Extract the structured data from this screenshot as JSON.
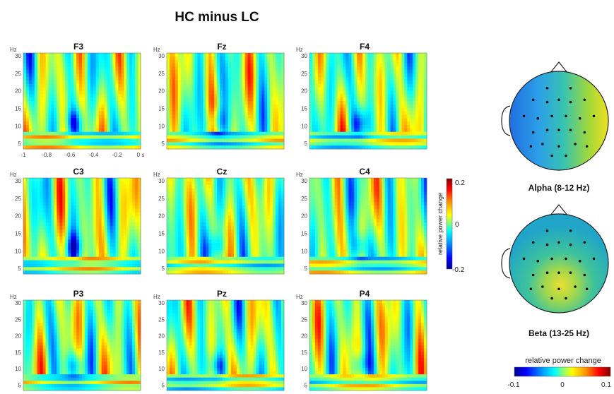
{
  "figure": {
    "title": "HC minus LC",
    "freq_unit": "Hz",
    "y_ticks": [
      "30",
      "25",
      "20",
      "15",
      "10",
      "5"
    ],
    "x_ticks": [
      "-1",
      "-0.8",
      "-0.6",
      "-0.4",
      "-0.2",
      "0 s"
    ],
    "colorbar": {
      "label": "relative power change",
      "ticks": [
        "0.2",
        "0",
        "-0.2"
      ]
    },
    "topo_alpha_label": "Alpha (8-12 Hz)",
    "topo_beta_label": "Beta (13-25 Hz)",
    "topo_colorbar": {
      "label": "relative power change",
      "ticks": [
        "-0.1",
        "0",
        "0.1"
      ]
    },
    "colors": {
      "colormap": [
        "#00008f",
        "#0000ff",
        "#00a0ff",
        "#00ffff",
        "#7fff7f",
        "#ffff00",
        "#ff8c00",
        "#ff0000",
        "#800000"
      ],
      "background": "#ffffff"
    }
  },
  "chart_data": [
    {
      "type": "heatmap",
      "channels": [
        "F3",
        "Fz",
        "F4",
        "C3",
        "Cz",
        "C4",
        "P3",
        "Pz",
        "P4"
      ],
      "ylabel": "Hz",
      "ylim": [
        3,
        30
      ],
      "xlim": [
        -1,
        0
      ],
      "x_ticks": [
        -1,
        -0.8,
        -0.6,
        -0.4,
        -0.2,
        0
      ],
      "y_ticks": [
        5,
        10,
        15,
        20,
        25,
        30
      ],
      "color_range": [
        -0.2,
        0.2
      ],
      "colorbar_label": "relative power change"
    },
    {
      "type": "heatmap",
      "subtype": "topographic",
      "panels": [
        "Alpha (8-12 Hz)",
        "Beta (13-25 Hz)"
      ],
      "color_range": [
        -0.1,
        0.1
      ],
      "colorbar_label": "relative power change"
    }
  ]
}
